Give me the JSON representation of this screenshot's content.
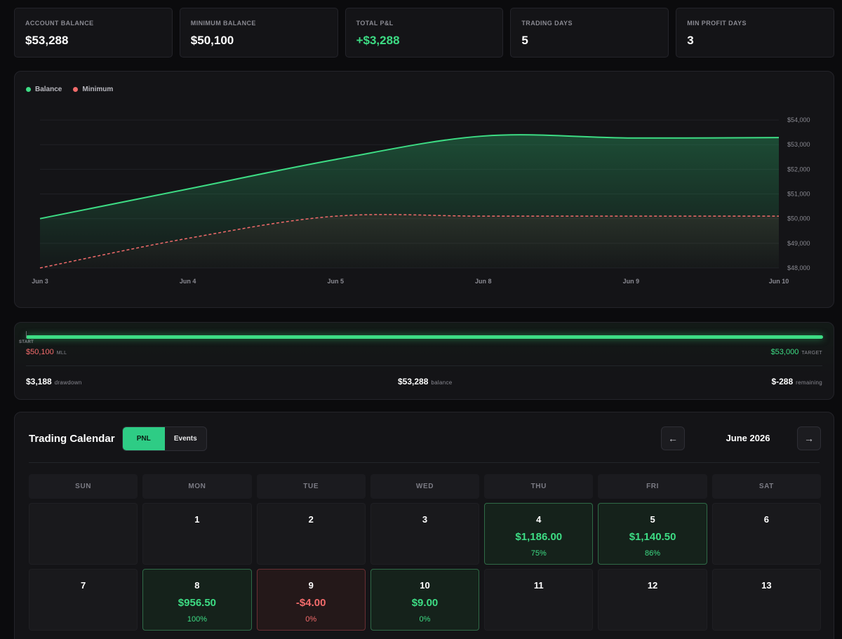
{
  "stats": [
    {
      "label": "ACCOUNT BALANCE",
      "value": "$53,288",
      "tone": "neutral"
    },
    {
      "label": "MINIMUM BALANCE",
      "value": "$50,100",
      "tone": "neutral"
    },
    {
      "label": "TOTAL P&L",
      "value": "+$3,288",
      "tone": "positive"
    },
    {
      "label": "TRADING DAYS",
      "value": "5",
      "tone": "neutral"
    },
    {
      "label": "MIN PROFIT DAYS",
      "value": "3",
      "tone": "neutral"
    }
  ],
  "chart_data": {
    "type": "area",
    "x": [
      "Jun 3",
      "Jun 4",
      "Jun 5",
      "Jun 8",
      "Jun 9",
      "Jun 10"
    ],
    "series": [
      {
        "name": "Balance",
        "values": [
          50000,
          51200,
          52400,
          53350,
          53270,
          53288
        ],
        "color": "#3ddc84",
        "style": "solid"
      },
      {
        "name": "Minimum",
        "values": [
          48000,
          49200,
          50100,
          50100,
          50100,
          50100
        ],
        "color": "#f26b6b",
        "style": "dashed"
      }
    ],
    "yticks": [
      48000,
      49000,
      50000,
      51000,
      52000,
      53000,
      54000
    ],
    "ytick_labels": [
      "$48,000",
      "$49,000",
      "$50,000",
      "$51,000",
      "$52,000",
      "$53,000",
      "$54,000"
    ],
    "ylim": [
      48000,
      54600
    ],
    "grid": true,
    "legend_position": "top-left",
    "title": "",
    "xlabel": "",
    "ylabel": ""
  },
  "drawdown": {
    "progress": 1.0,
    "start_label": "START",
    "mll_value": "$50,100",
    "mll_label": "MLL",
    "target_value": "$53,000",
    "target_label": "TARGET",
    "drawdown_value": "$3,188",
    "drawdown_label": "drawdown",
    "balance_value": "$53,288",
    "balance_label": "balance",
    "remaining_value": "$-288",
    "remaining_label": "remaining"
  },
  "calendar": {
    "title": "Trading Calendar",
    "toggle": [
      "PNL",
      "Events"
    ],
    "active_toggle": "PNL",
    "month": "June 2026",
    "prev_icon": "←",
    "next_icon": "→",
    "weekdays": [
      "SUN",
      "MON",
      "TUE",
      "WED",
      "THU",
      "FRI",
      "SAT"
    ],
    "weeks": [
      [
        {
          "day": ""
        },
        {
          "day": "1"
        },
        {
          "day": "2"
        },
        {
          "day": "3"
        },
        {
          "day": "4",
          "pnl": "$1,186.00",
          "pct": "75%",
          "result": "win"
        },
        {
          "day": "5",
          "pnl": "$1,140.50",
          "pct": "86%",
          "result": "win"
        },
        {
          "day": "6"
        }
      ],
      [
        {
          "day": "7"
        },
        {
          "day": "8",
          "pnl": "$956.50",
          "pct": "100%",
          "result": "win"
        },
        {
          "day": "9",
          "pnl": "-$4.00",
          "pct": "0%",
          "result": "loss"
        },
        {
          "day": "10",
          "pnl": "$9.00",
          "pct": "0%",
          "result": "win"
        },
        {
          "day": "11"
        },
        {
          "day": "12"
        },
        {
          "day": "13"
        }
      ]
    ]
  }
}
